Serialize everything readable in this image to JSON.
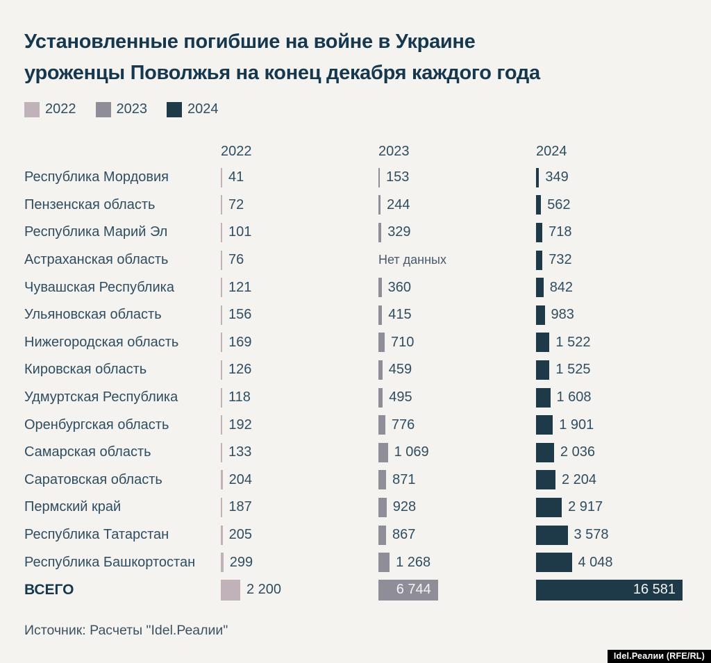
{
  "title": {
    "line1": "Установленные погибшие на войне в Украине",
    "line2": "уроженцы Поволжья на конец декабря каждого года"
  },
  "legend": [
    {
      "label": "2022",
      "color": "#c1b1b8"
    },
    {
      "label": "2023",
      "color": "#8f8d97"
    },
    {
      "label": "2024",
      "color": "#1e3a49"
    }
  ],
  "columns": [
    "2022",
    "2023",
    "2024"
  ],
  "no_data_label": "Нет данных",
  "total_label": "ВСЕГО",
  "source": "Источник: Расчеты \"Idel.Реалии\"",
  "badge": "Idel.Реалии (RFE/RL)",
  "colors": {
    "background": "#f5f3f0",
    "text": "#2f4d60",
    "title": "#16384e",
    "bar_2022": "#c1b1b8",
    "bar_2023": "#8f8d97",
    "bar_2024": "#1e3a49"
  },
  "chart_data": {
    "type": "bar",
    "title": "Установленные погибшие на войне в Украине уроженцы Поволжья на конец декабря каждого года",
    "orientation": "horizontal",
    "categories": [
      "Республика Мордовия",
      "Пензенская область",
      "Республика Марий Эл",
      "Астраханская область",
      "Чувашская Республика",
      "Ульяновская область",
      "Нижегородская область",
      "Кировская область",
      "Удмуртская Республика",
      "Оренбургская область",
      "Самарская область",
      "Саратовская область",
      "Пермский край",
      "Республика Татарстан",
      "Республика Башкортостан"
    ],
    "series": [
      {
        "name": "2022",
        "color": "#c1b1b8",
        "values": [
          41,
          72,
          101,
          76,
          121,
          156,
          169,
          126,
          118,
          192,
          133,
          204,
          187,
          205,
          299
        ],
        "total": 2200
      },
      {
        "name": "2023",
        "color": "#8f8d97",
        "values": [
          153,
          244,
          329,
          null,
          360,
          415,
          710,
          459,
          495,
          776,
          1069,
          871,
          928,
          867,
          1268
        ],
        "total": 6744
      },
      {
        "name": "2024",
        "color": "#1e3a49",
        "values": [
          349,
          562,
          718,
          732,
          842,
          983,
          1522,
          1525,
          1608,
          1901,
          2036,
          2204,
          2917,
          3578,
          4048
        ],
        "total": 16581
      }
    ],
    "no_data": [
      {
        "category": "Астраханская область",
        "series": "2023"
      }
    ],
    "value_axis_max": 16581,
    "grid": false,
    "legend_position": "top-left"
  }
}
